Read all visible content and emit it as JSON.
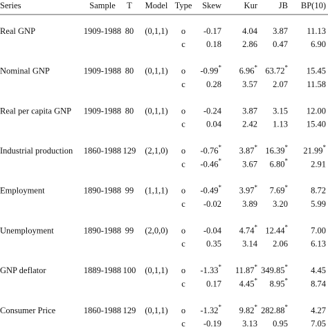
{
  "table": {
    "header": [
      "Series",
      "Sample",
      "T",
      "Model",
      "Type",
      "Skew",
      "Kur",
      "JB",
      "BP(10)"
    ],
    "groups": [
      {
        "series": "Real GNP",
        "sample": "1909-1988",
        "T": "80",
        "model": "(0,1,1)",
        "rows": [
          [
            "o",
            "-0.17",
            "4.04",
            "3.87",
            "11.13"
          ],
          [
            "c",
            "0.18",
            "2.86",
            "0.47",
            "6.90"
          ]
        ]
      },
      {
        "series": "Nominal GNP",
        "sample": "1909-1988",
        "T": "80",
        "model": "(0,1,1)",
        "rows": [
          [
            "o",
            "-0.99*",
            "6.96*",
            "63.72*",
            "15.45"
          ],
          [
            "c",
            "0.28",
            "3.57",
            "2.07",
            "11.58"
          ]
        ]
      },
      {
        "series": "Real per capita GNP",
        "sample": "1909-1988",
        "T": "80",
        "model": "(0,1,1)",
        "rows": [
          [
            "o",
            "-0.24",
            "3.87",
            "3.15",
            "12.00"
          ],
          [
            "c",
            "0.04",
            "2.42",
            "1.13",
            "15.40"
          ]
        ]
      },
      {
        "series": "Industrial production",
        "sample": "1860-1988",
        "T": "129",
        "model": "(2,1,0)",
        "rows": [
          [
            "o",
            "-0.76*",
            "3.87*",
            "16.39*",
            "21.99*"
          ],
          [
            "c",
            "-0.46*",
            "3.67",
            "6.80*",
            "2.91"
          ]
        ]
      },
      {
        "series": "Employment",
        "sample": "1890-1988",
        "T": "99",
        "model": "(1,1,1)",
        "rows": [
          [
            "o",
            "-0.49*",
            "3.97*",
            "7.69*",
            "8.72"
          ],
          [
            "c",
            "-0.02",
            "3.89",
            "3.20",
            "5.99"
          ]
        ]
      },
      {
        "series": "Unemployment",
        "sample": "1890-1988",
        "T": "99",
        "model": "(2,0,0)",
        "rows": [
          [
            "o",
            "-0.04",
            "4.74*",
            "12.44*",
            "7.00"
          ],
          [
            "c",
            "0.35",
            "3.14",
            "2.06",
            "6.13"
          ]
        ]
      },
      {
        "series": "GNP deflator",
        "sample": "1889-1988",
        "T": "100",
        "model": "(0,1,1)",
        "rows": [
          [
            "o",
            "-1.33*",
            "11.87*",
            "349.85*",
            "4.45"
          ],
          [
            "c",
            "0.17",
            "4.45*",
            "8.95*",
            "8.74"
          ]
        ]
      },
      {
        "series": "Consumer Price",
        "sample": "1860-1988",
        "T": "129",
        "model": "(0,1,1)",
        "rows": [
          [
            "o",
            "-1.32*",
            "9.82*",
            "282.88*",
            "4.27"
          ],
          [
            "c",
            "-0.19",
            "3.13",
            "0.95",
            "7.05"
          ]
        ]
      }
    ]
  }
}
